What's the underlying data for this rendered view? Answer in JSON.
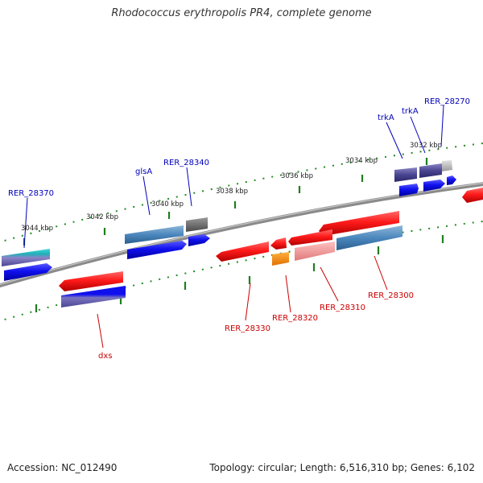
{
  "title": "Rhodococcus erythropolis PR4, complete genome",
  "footer": {
    "accession": "Accession: NC_012490",
    "topology": "Topology: circular; Length: 6,516,310 bp; Genes: 6,102"
  },
  "ticks": [
    "3032 kbp",
    "3034 kbp",
    "3036 kbp",
    "3038 kbp",
    "3040 kbp",
    "3042 kbp",
    "3044 kbp"
  ],
  "genes": [
    {
      "label": "RER_28270",
      "strand": "+",
      "color": "#0000bb"
    },
    {
      "label": "trkA",
      "strand": "+",
      "color": "#0000bb"
    },
    {
      "label": "trkA",
      "strand": "+",
      "color": "#0000bb"
    },
    {
      "label": "RER_28340",
      "strand": "+",
      "color": "#0000bb"
    },
    {
      "label": "glsA",
      "strand": "+",
      "color": "#0000bb"
    },
    {
      "label": "RER_28370",
      "strand": "+",
      "color": "#0000bb"
    },
    {
      "label": "RER_28300",
      "strand": "-",
      "color": "#cc0000"
    },
    {
      "label": "RER_28310",
      "strand": "-",
      "color": "#cc0000"
    },
    {
      "label": "RER_28320",
      "strand": "-",
      "color": "#cc0000"
    },
    {
      "label": "RER_28330",
      "strand": "-",
      "color": "#cc0000"
    },
    {
      "label": "dxs",
      "strand": "-",
      "color": "#cc0000"
    }
  ]
}
